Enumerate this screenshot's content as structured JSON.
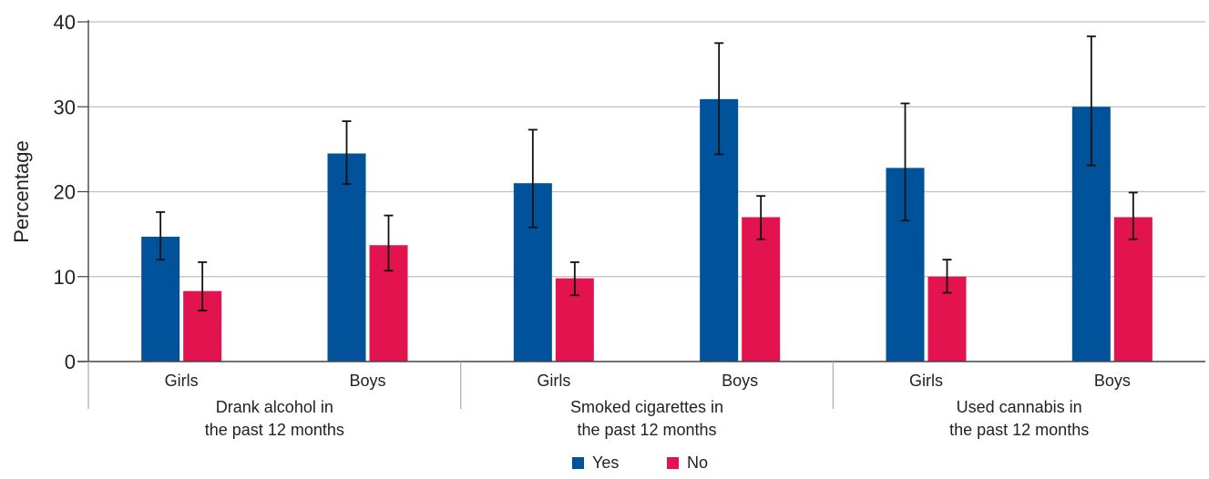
{
  "chart_data": {
    "type": "bar",
    "ylabel": "Percentage",
    "ylim": [
      0,
      40
    ],
    "yticks": [
      0,
      10,
      20,
      30,
      40
    ],
    "grid": true,
    "legend_position": "bottom",
    "groups": [
      {
        "label_lines": [
          "Drank alcohol in",
          "the past 12 months"
        ],
        "categories": [
          "Girls",
          "Boys"
        ]
      },
      {
        "label_lines": [
          "Smoked cigarettes in",
          "the past 12 months"
        ],
        "categories": [
          "Girls",
          "Boys"
        ]
      },
      {
        "label_lines": [
          "Used cannabis in",
          "the past 12 months"
        ],
        "categories": [
          "Girls",
          "Boys"
        ]
      }
    ],
    "series": [
      {
        "name": "Yes",
        "color": "#00529b",
        "values": [
          14.7,
          24.5,
          21.0,
          30.9,
          22.8,
          30.0
        ],
        "error_low": [
          12.0,
          20.9,
          15.8,
          24.4,
          16.6,
          23.1
        ],
        "error_high": [
          17.6,
          28.3,
          27.3,
          37.5,
          30.4,
          38.3
        ]
      },
      {
        "name": "No",
        "color": "#e3134f",
        "values": [
          8.3,
          13.7,
          9.8,
          17.0,
          10.0,
          17.0
        ],
        "error_low": [
          6.0,
          10.7,
          7.8,
          14.4,
          8.1,
          14.4
        ],
        "error_high": [
          11.7,
          17.2,
          11.7,
          19.5,
          12.0,
          19.9
        ]
      }
    ]
  }
}
